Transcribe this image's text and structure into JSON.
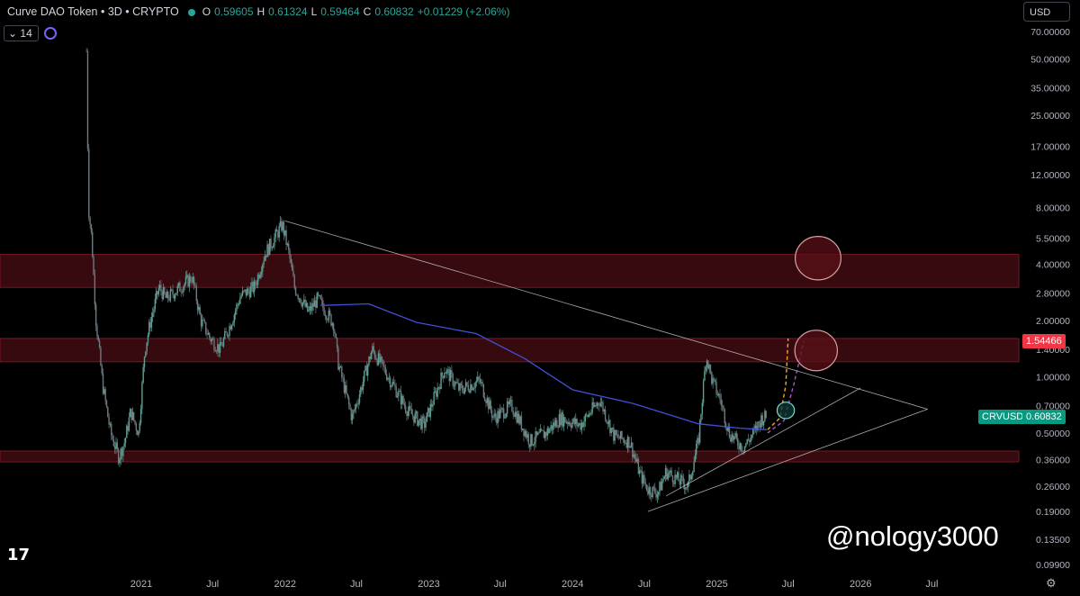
{
  "header": {
    "symbol": "Curve DAO Token • 3D • CRYPTO",
    "open_label": "O",
    "open": "0.59605",
    "high_label": "H",
    "high": "0.61324",
    "low_label": "L",
    "low": "0.59464",
    "close_label": "C",
    "close": "0.60832",
    "change": "+0.01229 (+2.06%)"
  },
  "indicator": {
    "value": "14",
    "icon": "cycle-icon"
  },
  "currency": "USD",
  "watermark": "@nology3000",
  "colors": {
    "up": "#26a69a",
    "zone": "#4a0d14",
    "ma": "#3f51d8",
    "red_tag": "#f23645",
    "green_tag": "#089981"
  },
  "chart_data": {
    "type": "candlestick",
    "title": "",
    "y_scale": "log",
    "x_ticks": [
      "2021",
      "Jul",
      "2022",
      "Jul",
      "2023",
      "Jul",
      "2024",
      "Jul",
      "2025",
      "Jul",
      "2026",
      "Jul"
    ],
    "y_ticks": [
      "70.00000",
      "50.00000",
      "35.00000",
      "25.00000",
      "17.00000",
      "12.00000",
      "8.00000",
      "5.50000",
      "4.00000",
      "2.80000",
      "2.00000",
      "1.40000",
      "1.00000",
      "0.70000",
      "0.50000",
      "0.36000",
      "0.26000",
      "0.19000",
      "0.13500",
      "0.09900"
    ],
    "price_tags": [
      {
        "label": "",
        "value": "1.54466",
        "price": 1.54466,
        "color": "#f23645"
      },
      {
        "label": "CRVUSD",
        "value": "0.60832",
        "price": 0.60832,
        "color": "#089981"
      }
    ],
    "price_path": [
      [
        "2020-08-15",
        55
      ],
      [
        "2020-08-20",
        8
      ],
      [
        "2020-08-28",
        5.5
      ],
      [
        "2020-09-08",
        2.0
      ],
      [
        "2020-09-25",
        0.9
      ],
      [
        "2020-10-15",
        0.5
      ],
      [
        "2020-11-05",
        0.37
      ],
      [
        "2020-11-20",
        0.45
      ],
      [
        "2020-12-05",
        0.65
      ],
      [
        "2020-12-25",
        0.5
      ],
      [
        "2021-01-10",
        1.4
      ],
      [
        "2021-01-25",
        2.0
      ],
      [
        "2021-02-15",
        3.0
      ],
      [
        "2021-03-05",
        2.6
      ],
      [
        "2021-04-01",
        2.9
      ],
      [
        "2021-05-10",
        3.4
      ],
      [
        "2021-06-01",
        2.0
      ],
      [
        "2021-06-25",
        1.6
      ],
      [
        "2021-07-20",
        1.4
      ],
      [
        "2021-08-15",
        1.9
      ],
      [
        "2021-09-10",
        2.7
      ],
      [
        "2021-10-15",
        3.0
      ],
      [
        "2021-11-10",
        4.5
      ],
      [
        "2021-12-05",
        5.5
      ],
      [
        "2021-12-25",
        6.5
      ],
      [
        "2022-01-10",
        4.6
      ],
      [
        "2022-01-25",
        3.0
      ],
      [
        "2022-03-01",
        2.2
      ],
      [
        "2022-03-25",
        2.6
      ],
      [
        "2022-05-05",
        1.9
      ],
      [
        "2022-05-15",
        1.2
      ],
      [
        "2022-06-20",
        0.6
      ],
      [
        "2022-07-15",
        0.9
      ],
      [
        "2022-08-10",
        1.4
      ],
      [
        "2022-09-20",
        1.0
      ],
      [
        "2022-11-10",
        0.65
      ],
      [
        "2022-12-20",
        0.55
      ],
      [
        "2023-02-10",
        1.1
      ],
      [
        "2023-03-20",
        0.85
      ],
      [
        "2023-05-10",
        0.95
      ],
      [
        "2023-06-15",
        0.6
      ],
      [
        "2023-07-30",
        0.7
      ],
      [
        "2023-09-15",
        0.45
      ],
      [
        "2023-10-25",
        0.5
      ],
      [
        "2023-12-01",
        0.6
      ],
      [
        "2024-01-20",
        0.55
      ],
      [
        "2024-03-10",
        0.75
      ],
      [
        "2024-04-15",
        0.48
      ],
      [
        "2024-05-25",
        0.45
      ],
      [
        "2024-06-20",
        0.3
      ],
      [
        "2024-07-10",
        0.25
      ],
      [
        "2024-08-05",
        0.24
      ],
      [
        "2024-08-25",
        0.31
      ],
      [
        "2024-09-25",
        0.28
      ],
      [
        "2024-10-20",
        0.26
      ],
      [
        "2024-11-15",
        0.45
      ],
      [
        "2024-12-05",
        1.3
      ],
      [
        "2024-12-20",
        0.95
      ],
      [
        "2025-01-10",
        0.75
      ],
      [
        "2025-02-01",
        0.5
      ],
      [
        "2025-02-20",
        0.45
      ],
      [
        "2025-03-10",
        0.42
      ],
      [
        "2025-04-05",
        0.5
      ],
      [
        "2025-04-25",
        0.6
      ],
      [
        "2025-05-08",
        0.61
      ]
    ],
    "moving_average": [
      [
        "2022-04-01",
        2.4
      ],
      [
        "2022-08-01",
        2.45
      ],
      [
        "2022-12-01",
        1.95
      ],
      [
        "2023-05-01",
        1.7
      ],
      [
        "2023-09-01",
        1.25
      ],
      [
        "2024-01-01",
        0.85
      ],
      [
        "2024-06-01",
        0.72
      ],
      [
        "2024-11-15",
        0.56
      ],
      [
        "2025-03-01",
        0.53
      ],
      [
        "2025-05-08",
        0.52
      ]
    ],
    "zones": [
      {
        "from": 3.0,
        "to": 4.5
      },
      {
        "from": 1.2,
        "to": 1.6
      },
      {
        "from": 0.35,
        "to": 0.4
      }
    ],
    "trendlines": [
      {
        "from": [
          "2022-01-01",
          6.8
        ],
        "to": [
          "2026-06-20",
          0.67
        ]
      },
      {
        "from": [
          "2024-07-10",
          0.19
        ],
        "to": [
          "2026-06-20",
          0.67
        ]
      },
      {
        "from": [
          "2024-08-25",
          0.23
        ],
        "to": [
          "2026-01-01",
          0.87
        ]
      }
    ],
    "projections": [
      {
        "color": "#f5a623",
        "points": [
          [
            "2025-05-10",
            0.52
          ],
          [
            "2025-06-10",
            0.6
          ],
          [
            "2025-06-25",
            0.9
          ],
          [
            "2025-07-01",
            1.6
          ]
        ]
      },
      {
        "color": "#a259c9",
        "points": [
          [
            "2025-05-10",
            0.5
          ],
          [
            "2025-06-20",
            0.58
          ],
          [
            "2025-07-15",
            0.9
          ],
          [
            "2025-08-10",
            1.55
          ]
        ]
      }
    ],
    "circles": [
      {
        "center": [
          "2025-09-15",
          4.3
        ],
        "rx_days": 58,
        "color": "#d9a0a0"
      },
      {
        "center": [
          "2025-09-10",
          1.38
        ],
        "rx_days": 54,
        "color": "#d9a0a0"
      },
      {
        "center": [
          "2025-06-25",
          0.66
        ],
        "rx_days": 22,
        "color": "#7fd8c8"
      }
    ]
  }
}
